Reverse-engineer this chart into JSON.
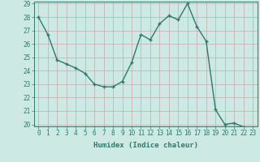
{
  "x": [
    0,
    1,
    2,
    3,
    4,
    5,
    6,
    7,
    8,
    9,
    10,
    11,
    12,
    13,
    14,
    15,
    16,
    17,
    18,
    19,
    20,
    21,
    22,
    23
  ],
  "y": [
    28.0,
    26.7,
    24.8,
    24.5,
    24.2,
    23.8,
    23.0,
    22.8,
    22.8,
    23.2,
    24.6,
    26.7,
    26.3,
    27.5,
    28.1,
    27.8,
    29.0,
    27.3,
    26.2,
    21.1,
    20.0,
    20.1,
    19.8,
    19.6
  ],
  "line_color": "#2d7a6a",
  "marker": "+",
  "marker_size": 3,
  "bg_color": "#cce9e4",
  "grid_color": "#c8a8a8",
  "xlabel": "Humidex (Indice chaleur)",
  "ylim": [
    20,
    29
  ],
  "xlim": [
    -0.5,
    23.5
  ],
  "yticks": [
    20,
    21,
    22,
    23,
    24,
    25,
    26,
    27,
    28,
    29
  ],
  "xticks": [
    0,
    1,
    2,
    3,
    4,
    5,
    6,
    7,
    8,
    9,
    10,
    11,
    12,
    13,
    14,
    15,
    16,
    17,
    18,
    19,
    20,
    21,
    22,
    23
  ],
  "tick_color": "#2d7a6a",
  "label_fontsize": 6.5,
  "tick_fontsize": 5.5,
  "line_width": 1.0
}
